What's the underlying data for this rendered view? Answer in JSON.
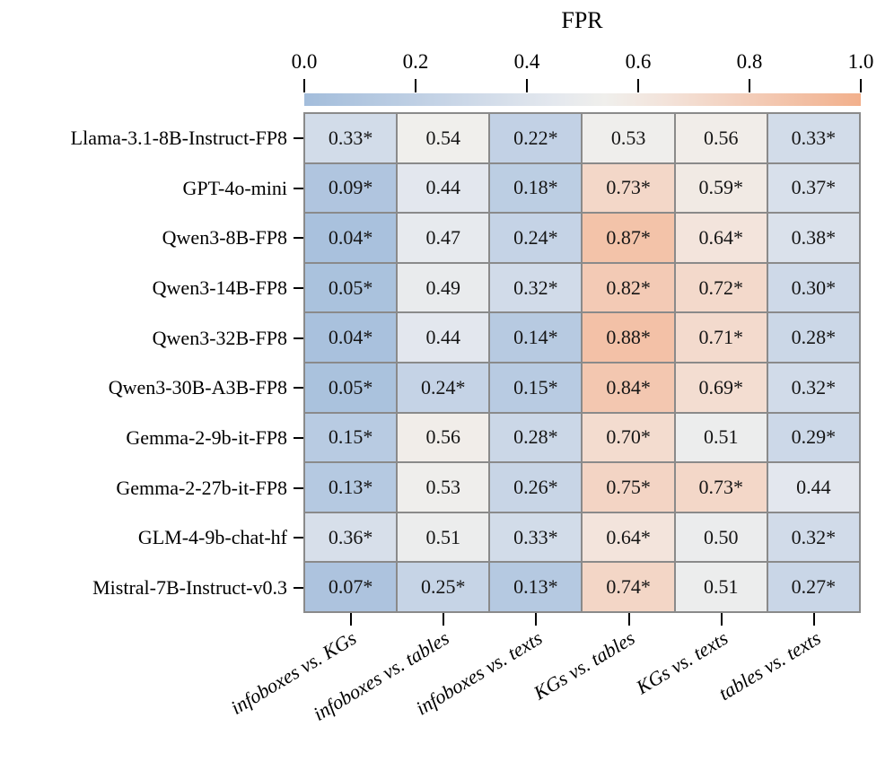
{
  "chart_data": {
    "type": "heatmap",
    "title": "FPR",
    "rows": [
      "Llama-3.1-8B-Instruct-FP8",
      "GPT-4o-mini",
      "Qwen3-8B-FP8",
      "Qwen3-14B-FP8",
      "Qwen3-32B-FP8",
      "Qwen3-30B-A3B-FP8",
      "Gemma-2-9b-it-FP8",
      "Gemma-2-27b-it-FP8",
      "GLM-4-9b-chat-hf",
      "Mistral-7B-Instruct-v0.3"
    ],
    "columns": [
      "infoboxes vs. KGs",
      "infoboxes vs. tables",
      "infoboxes vs. texts",
      "KGs vs. tables",
      "KGs vs. texts",
      "tables vs. texts"
    ],
    "values": [
      [
        0.33,
        0.54,
        0.22,
        0.53,
        0.56,
        0.33
      ],
      [
        0.09,
        0.44,
        0.18,
        0.73,
        0.59,
        0.37
      ],
      [
        0.04,
        0.47,
        0.24,
        0.87,
        0.64,
        0.38
      ],
      [
        0.05,
        0.49,
        0.32,
        0.82,
        0.72,
        0.3
      ],
      [
        0.04,
        0.44,
        0.14,
        0.88,
        0.71,
        0.28
      ],
      [
        0.05,
        0.24,
        0.15,
        0.84,
        0.69,
        0.32
      ],
      [
        0.15,
        0.56,
        0.28,
        0.7,
        0.51,
        0.29
      ],
      [
        0.13,
        0.53,
        0.26,
        0.75,
        0.73,
        0.44
      ],
      [
        0.36,
        0.51,
        0.33,
        0.64,
        0.5,
        0.32
      ],
      [
        0.07,
        0.25,
        0.13,
        0.74,
        0.51,
        0.27
      ]
    ],
    "cell_labels": [
      [
        "0.33*",
        "0.54",
        "0.22*",
        "0.53",
        "0.56",
        "0.33*"
      ],
      [
        "0.09*",
        "0.44",
        "0.18*",
        "0.73*",
        "0.59*",
        "0.37*"
      ],
      [
        "0.04*",
        "0.47",
        "0.24*",
        "0.87*",
        "0.64*",
        "0.38*"
      ],
      [
        "0.05*",
        "0.49",
        "0.32*",
        "0.82*",
        "0.72*",
        "0.30*"
      ],
      [
        "0.04*",
        "0.44",
        "0.14*",
        "0.88*",
        "0.71*",
        "0.28*"
      ],
      [
        "0.05*",
        "0.24*",
        "0.15*",
        "0.84*",
        "0.69*",
        "0.32*"
      ],
      [
        "0.15*",
        "0.56",
        "0.28*",
        "0.70*",
        "0.51",
        "0.29*"
      ],
      [
        "0.13*",
        "0.53",
        "0.26*",
        "0.75*",
        "0.73*",
        "0.44"
      ],
      [
        "0.36*",
        "0.51",
        "0.33*",
        "0.64*",
        "0.50",
        "0.32*"
      ],
      [
        "0.07*",
        "0.25*",
        "0.13*",
        "0.74*",
        "0.51",
        "0.27*"
      ]
    ],
    "significance_marker": "*",
    "value_range": [
      0,
      1
    ],
    "colorbar": {
      "tick_labels": [
        "0.0",
        "0.2",
        "0.4",
        "0.6",
        "0.8",
        "1.0"
      ],
      "orientation": "horizontal",
      "position": "top"
    },
    "colormap": {
      "midpoint": 0.54,
      "stops": [
        {
          "at": 0.0,
          "color": "#a3bddb"
        },
        {
          "at": 0.25,
          "color": "#c6d4e6"
        },
        {
          "at": 0.45,
          "color": "#e4e8ee"
        },
        {
          "at": 0.54,
          "color": "#f0efec"
        },
        {
          "at": 0.65,
          "color": "#f3e3da"
        },
        {
          "at": 0.8,
          "color": "#f3cdb9"
        },
        {
          "at": 1.0,
          "color": "#f2b08c"
        }
      ]
    },
    "grid_line_color": "#8a8a8a",
    "legend_position": "none"
  }
}
